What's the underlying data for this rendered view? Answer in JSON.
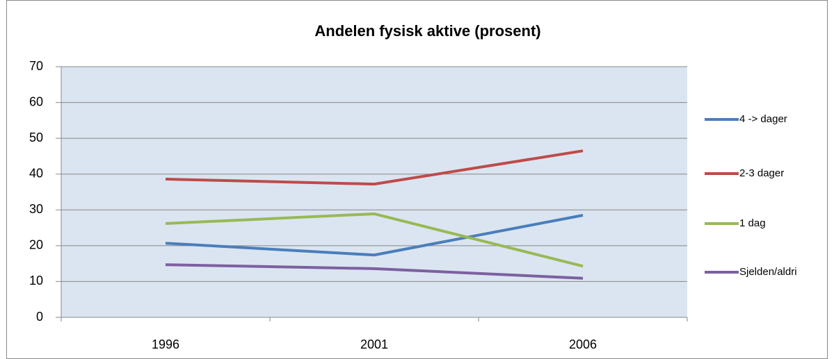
{
  "chart_data": {
    "type": "line",
    "title": "Andelen fysisk aktive (prosent)",
    "categories": [
      "1996",
      "2001",
      "2006"
    ],
    "series": [
      {
        "name": "4 -> dager",
        "color": "#4a7ebb",
        "values": [
          20.7,
          17.4,
          28.5
        ]
      },
      {
        "name": "2-3 dager",
        "color": "#be4b48",
        "values": [
          38.6,
          37.2,
          46.5
        ]
      },
      {
        "name": "1 dag",
        "color": "#98b954",
        "values": [
          26.2,
          28.9,
          14.3
        ]
      },
      {
        "name": "Sjelden/aldri",
        "color": "#7d60a0",
        "values": [
          14.7,
          13.6,
          10.9
        ]
      }
    ],
    "ylim": [
      0,
      70
    ],
    "yticks": [
      0,
      10,
      20,
      30,
      40,
      50,
      60,
      70
    ],
    "grid": true,
    "legend": "right"
  }
}
